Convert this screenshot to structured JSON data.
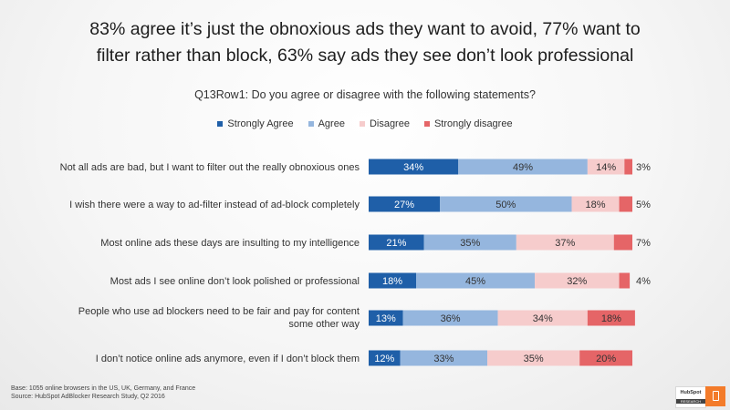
{
  "headline": {
    "line1": "83% agree it’s just the obnoxious ads they want to avoid, 77% want to",
    "line2": "filter rather than block, 63% say ads they see don’t look professional"
  },
  "chart_data": {
    "type": "bar",
    "orientation": "horizontal",
    "stacked": true,
    "title": "Q13Row1: Do you agree or disagree with the following statements?",
    "categories": [
      "Not all ads are bad, but I want to filter out the really obnoxious ones",
      "I wish there were a way to ad-filter instead of ad-block completely",
      "Most online ads these days are insulting to my intelligence",
      "Most ads I see online don’t look polished or professional",
      "People who use ad blockers need to be fair and pay for content some other way",
      "I don’t notice online ads anymore, even if I don’t block them"
    ],
    "series": [
      {
        "name": "Strongly Agree",
        "color": "#1f5fa8",
        "values": [
          34,
          27,
          21,
          18,
          13,
          12
        ]
      },
      {
        "name": "Agree",
        "color": "#95b6de",
        "values": [
          49,
          50,
          35,
          45,
          36,
          33
        ]
      },
      {
        "name": "Disagree",
        "color": "#f6cccc",
        "values": [
          14,
          18,
          37,
          32,
          34,
          35
        ]
      },
      {
        "name": "Strongly disagree",
        "color": "#e56567",
        "values": [
          3,
          5,
          7,
          4,
          18,
          20
        ]
      }
    ],
    "legend_position": "top",
    "grid": false,
    "xlim": [
      0,
      100
    ]
  },
  "footnote": {
    "line1": "Base: 1055 online browsers in the US, UK, Germany, and France",
    "line2": "Source: HubSpot AdBlocker Research Study, Q2 2016"
  },
  "logo": {
    "brand": "HubSpot",
    "sub": "RESEARCH"
  }
}
